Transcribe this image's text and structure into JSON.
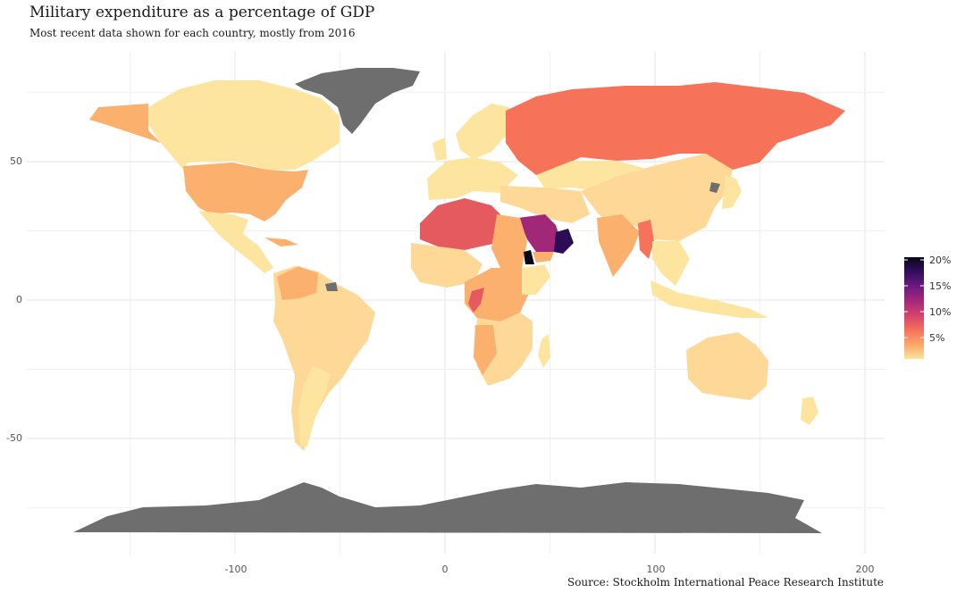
{
  "header": {
    "title": "Military expenditure as a percentage of GDP",
    "subtitle": "Most recent data shown for each country, mostly from 2016"
  },
  "caption": "Source: Stockholm International Peace Research Institute",
  "chart_data": {
    "type": "choropleth-map",
    "projection": "equirectangular",
    "xlim": [
      -180,
      200
    ],
    "ylim": [
      -90,
      84
    ],
    "x_ticks": [
      -100,
      0,
      100,
      200
    ],
    "y_ticks": [
      -50,
      0,
      50
    ],
    "x_tick_labels": [
      "-100",
      "0",
      "100",
      "200"
    ],
    "y_tick_labels": [
      "-50",
      "0",
      "50"
    ],
    "grid": true,
    "no_data_color": "#6e6e6e",
    "legend": {
      "position": "right",
      "min": 0,
      "max": 20,
      "ticks": [
        5,
        10,
        15,
        20
      ],
      "tick_labels": [
        "5%",
        "10%",
        "15%",
        "20%"
      ],
      "colors": [
        "#fde5a0",
        "#fcb06d",
        "#f6735a",
        "#d8446b",
        "#a12779",
        "#6a1a7e",
        "#2b0c55",
        "#0a0715"
      ]
    }
  }
}
